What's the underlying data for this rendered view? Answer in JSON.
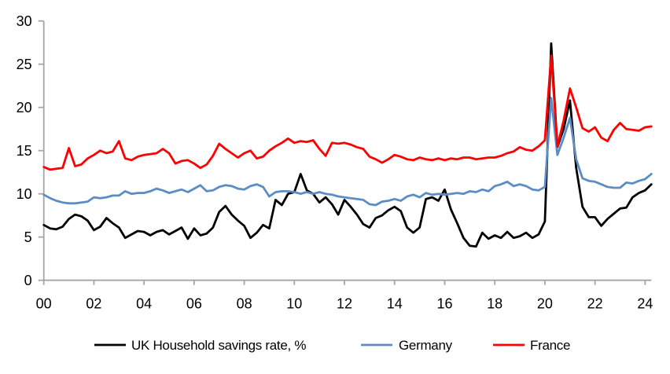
{
  "chart_data": {
    "type": "line",
    "title": "",
    "xlabel": "",
    "ylabel": "",
    "x_start_year": 2000,
    "x_step_years": 0.25,
    "x_frequency": "quarterly",
    "xlim": [
      2000,
      2024.35
    ],
    "ylim": [
      0,
      30
    ],
    "grid": false,
    "legend_position": "bottom",
    "y_ticks": [
      0,
      5,
      10,
      15,
      20,
      25,
      30
    ],
    "x_tick_years": [
      2000,
      2002,
      2004,
      2006,
      2008,
      2010,
      2012,
      2014,
      2016,
      2018,
      2020,
      2022,
      2024
    ],
    "x_tick_labels": [
      "00",
      "02",
      "04",
      "06",
      "08",
      "10",
      "12",
      "14",
      "16",
      "18",
      "20",
      "22",
      "24"
    ],
    "axis_color": "#A6A6A6",
    "tick_label_color": "#000000",
    "series": [
      {
        "key": "uk",
        "name": "UK Household savings rate, %",
        "color": "#000000",
        "values": [
          6.4,
          6.0,
          5.9,
          6.2,
          7.1,
          7.6,
          7.4,
          6.9,
          5.8,
          6.2,
          7.2,
          6.6,
          6.1,
          4.9,
          5.3,
          5.7,
          5.6,
          5.2,
          5.6,
          5.8,
          5.3,
          5.7,
          6.1,
          4.8,
          6.0,
          5.2,
          5.4,
          6.1,
          7.9,
          8.6,
          7.6,
          6.9,
          6.3,
          4.9,
          5.5,
          6.4,
          6.0,
          9.3,
          8.7,
          10.0,
          10.2,
          12.3,
          10.4,
          10.0,
          9.0,
          9.6,
          8.8,
          7.6,
          9.3,
          8.5,
          7.6,
          6.5,
          6.1,
          7.2,
          7.5,
          8.1,
          8.5,
          8.0,
          6.1,
          5.5,
          6.1,
          9.4,
          9.6,
          9.2,
          10.5,
          8.2,
          6.6,
          4.9,
          4.0,
          3.9,
          5.5,
          4.8,
          5.2,
          4.9,
          5.6,
          4.9,
          5.1,
          5.5,
          4.9,
          5.3,
          6.8,
          27.4,
          15.4,
          17.5,
          20.8,
          13.0,
          8.5,
          7.3,
          7.3,
          6.3,
          7.1,
          7.7,
          8.3,
          8.4,
          9.6,
          10.1,
          10.4,
          11.1
        ]
      },
      {
        "key": "germany",
        "name": "Germany",
        "color": "#5B8DC4",
        "values": [
          9.9,
          9.5,
          9.2,
          9.0,
          8.9,
          8.9,
          9.0,
          9.1,
          9.6,
          9.5,
          9.6,
          9.8,
          9.8,
          10.3,
          10.0,
          10.1,
          10.1,
          10.3,
          10.6,
          10.4,
          10.1,
          10.3,
          10.5,
          10.2,
          10.6,
          11.0,
          10.3,
          10.4,
          10.8,
          11.0,
          10.9,
          10.6,
          10.5,
          10.9,
          11.1,
          10.8,
          9.7,
          10.2,
          10.3,
          10.3,
          10.2,
          10.0,
          10.2,
          10.0,
          10.2,
          10.0,
          9.9,
          9.7,
          9.6,
          9.5,
          9.4,
          9.3,
          8.8,
          8.7,
          9.1,
          9.2,
          9.4,
          9.2,
          9.7,
          9.9,
          9.6,
          10.1,
          9.9,
          10.0,
          9.9,
          10.0,
          10.1,
          10.0,
          10.3,
          10.2,
          10.5,
          10.3,
          10.9,
          11.1,
          11.4,
          10.9,
          11.1,
          10.9,
          10.5,
          10.4,
          10.8,
          21.1,
          14.5,
          16.5,
          18.8,
          14.0,
          11.8,
          11.5,
          11.4,
          11.1,
          10.8,
          10.7,
          10.7,
          11.3,
          11.2,
          11.5,
          11.7,
          12.3
        ]
      },
      {
        "key": "france",
        "name": "France",
        "color": "#FF0000",
        "values": [
          13.1,
          12.8,
          12.9,
          13.0,
          15.3,
          13.2,
          13.4,
          14.1,
          14.5,
          15.0,
          14.7,
          14.9,
          16.1,
          14.1,
          13.9,
          14.3,
          14.5,
          14.6,
          14.7,
          15.2,
          14.7,
          13.5,
          13.8,
          13.9,
          13.5,
          13.0,
          13.4,
          14.4,
          15.8,
          15.2,
          14.7,
          14.2,
          14.7,
          15.0,
          14.1,
          14.3,
          15.0,
          15.5,
          15.9,
          16.4,
          15.9,
          16.1,
          16.0,
          16.2,
          15.2,
          14.4,
          15.9,
          15.8,
          15.9,
          15.7,
          15.4,
          15.2,
          14.3,
          14.0,
          13.6,
          14.0,
          14.5,
          14.3,
          14.0,
          13.9,
          14.2,
          14.0,
          13.9,
          14.1,
          13.9,
          14.1,
          14.0,
          14.2,
          14.2,
          14.0,
          14.1,
          14.2,
          14.2,
          14.4,
          14.7,
          14.9,
          15.4,
          15.1,
          15.0,
          15.5,
          16.2,
          26.0,
          15.5,
          18.5,
          22.2,
          20.0,
          17.6,
          17.2,
          17.7,
          16.5,
          16.1,
          17.4,
          18.2,
          17.5,
          17.4,
          17.3,
          17.7,
          17.8
        ]
      }
    ]
  }
}
